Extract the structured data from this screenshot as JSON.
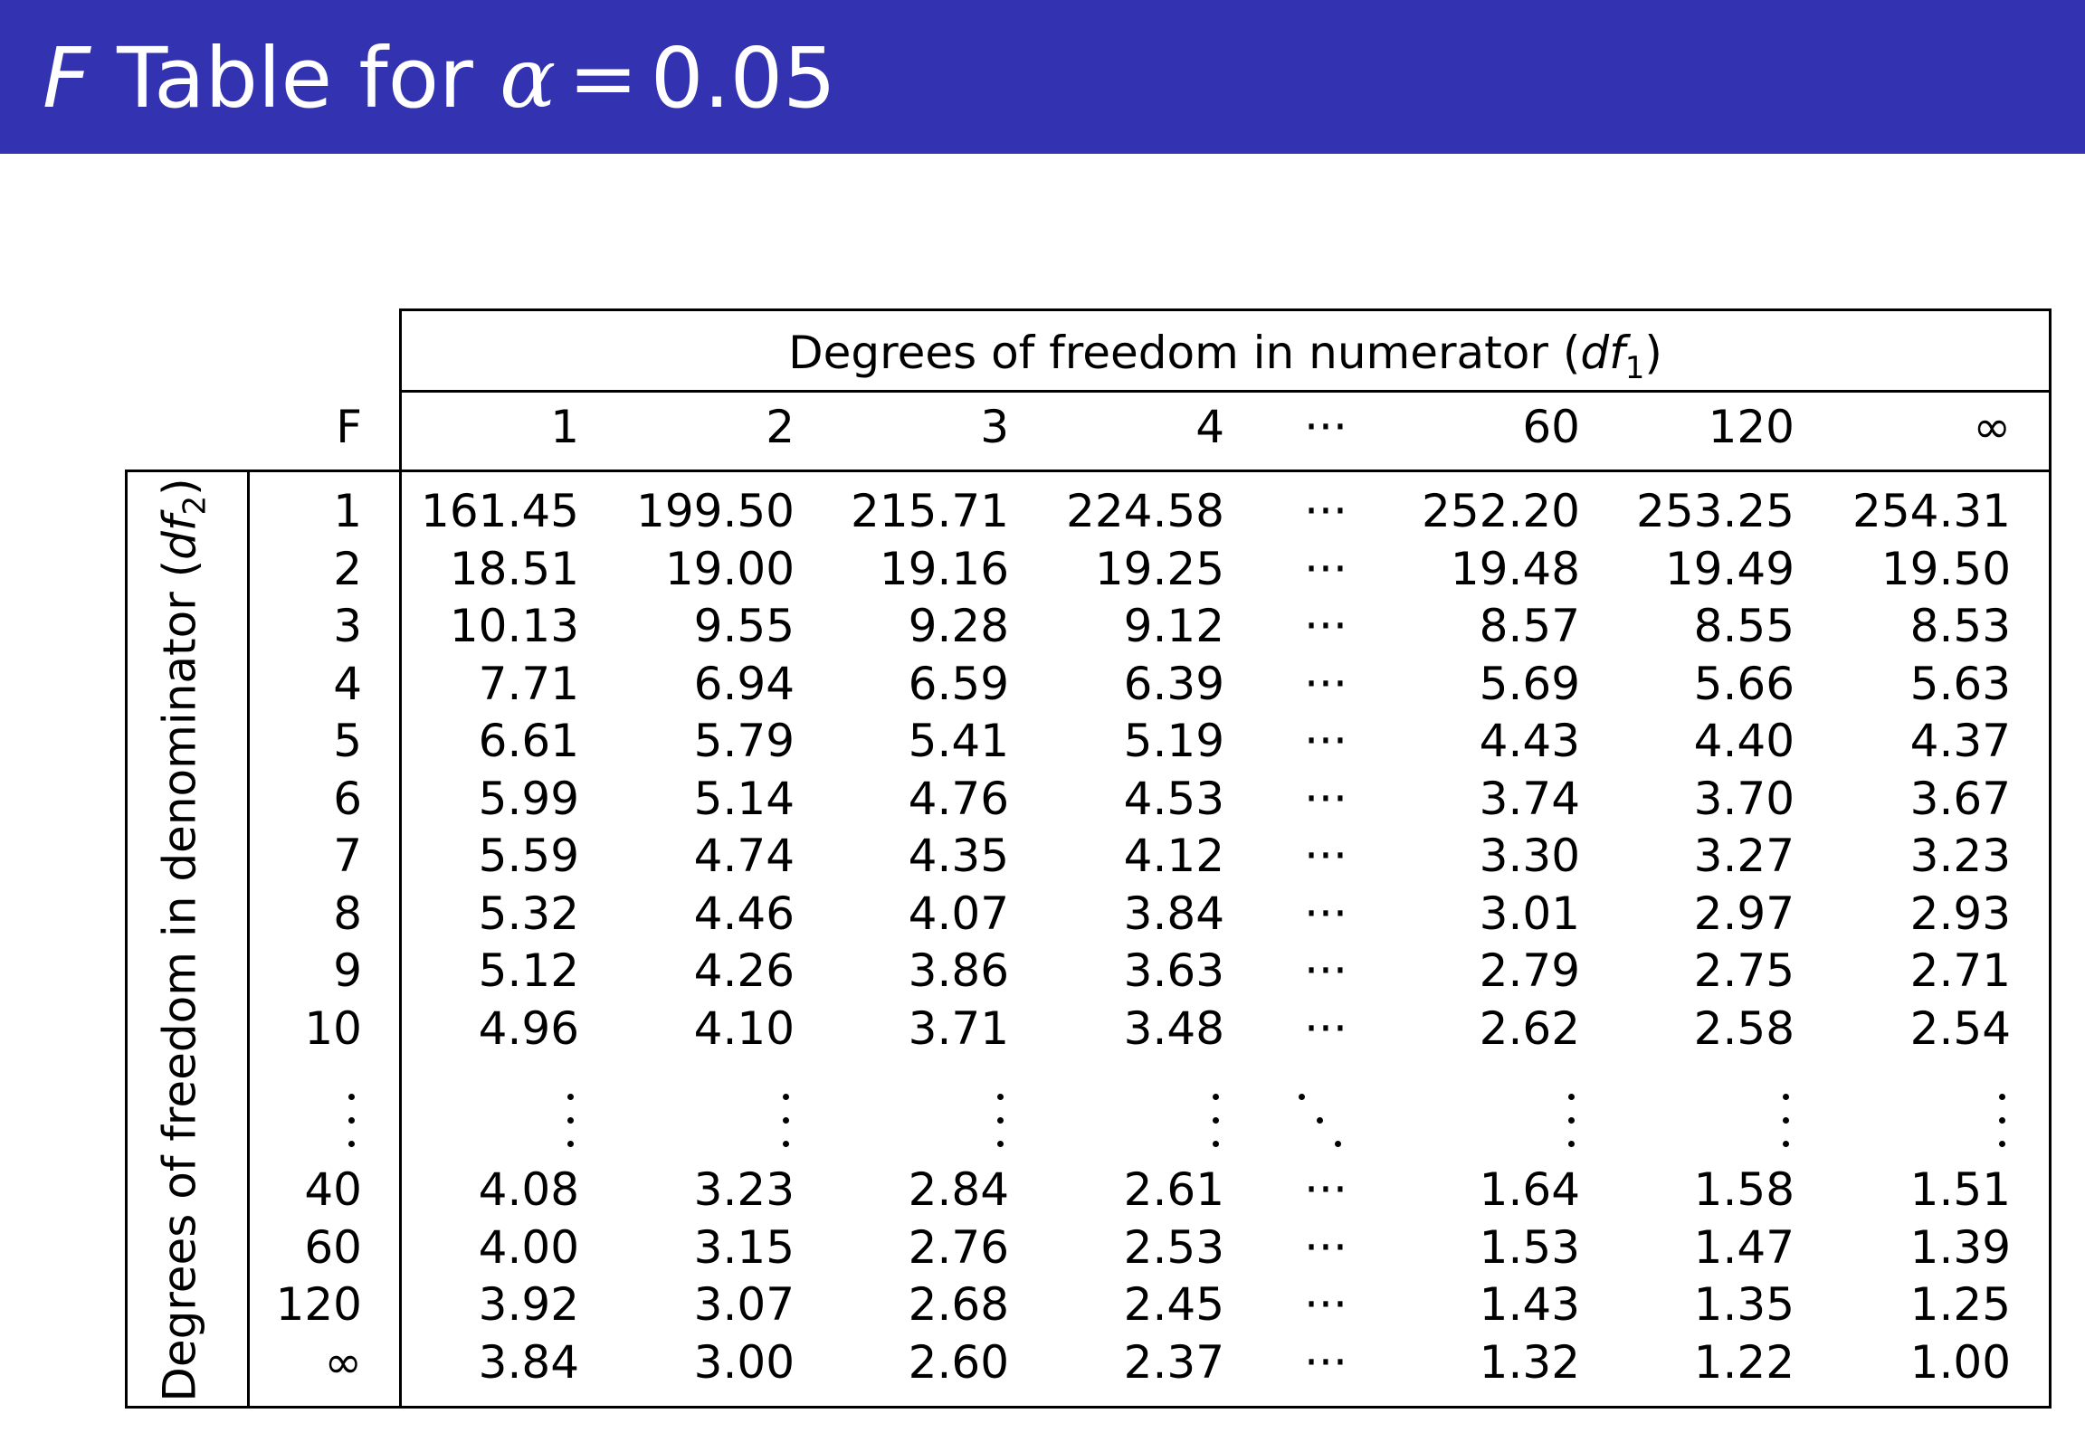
{
  "page": {
    "title_prefix": "F",
    "title_middle": "Table for",
    "title_alpha": "α",
    "title_equals": "=",
    "title_value": "0.05"
  },
  "table": {
    "corner_label": "F",
    "numerator_header": "Degrees of freedom in numerator (",
    "numerator_var": "df",
    "numerator_sub": "1",
    "numerator_close": ")",
    "denominator_header": "Degrees of freedom in denominator (",
    "denominator_var": "df",
    "denominator_sub": "2",
    "denominator_close": ")",
    "columns": [
      "1",
      "2",
      "3",
      "4",
      "···",
      "60",
      "120",
      "∞"
    ],
    "rows_top": [
      {
        "df2": "1",
        "values": [
          "161.45",
          "199.50",
          "215.71",
          "224.58",
          "···",
          "252.20",
          "253.25",
          "254.31"
        ]
      },
      {
        "df2": "2",
        "values": [
          "18.51",
          "19.00",
          "19.16",
          "19.25",
          "···",
          "19.48",
          "19.49",
          "19.50"
        ]
      },
      {
        "df2": "3",
        "values": [
          "10.13",
          "9.55",
          "9.28",
          "9.12",
          "···",
          "8.57",
          "8.55",
          "8.53"
        ]
      },
      {
        "df2": "4",
        "values": [
          "7.71",
          "6.94",
          "6.59",
          "6.39",
          "···",
          "5.69",
          "5.66",
          "5.63"
        ]
      },
      {
        "df2": "5",
        "values": [
          "6.61",
          "5.79",
          "5.41",
          "5.19",
          "···",
          "4.43",
          "4.40",
          "4.37"
        ]
      },
      {
        "df2": "6",
        "values": [
          "5.99",
          "5.14",
          "4.76",
          "4.53",
          "···",
          "3.74",
          "3.70",
          "3.67"
        ]
      },
      {
        "df2": "7",
        "values": [
          "5.59",
          "4.74",
          "4.35",
          "4.12",
          "···",
          "3.30",
          "3.27",
          "3.23"
        ]
      },
      {
        "df2": "8",
        "values": [
          "5.32",
          "4.46",
          "4.07",
          "3.84",
          "···",
          "3.01",
          "2.97",
          "2.93"
        ]
      },
      {
        "df2": "9",
        "values": [
          "5.12",
          "4.26",
          "3.86",
          "3.63",
          "···",
          "2.79",
          "2.75",
          "2.71"
        ]
      },
      {
        "df2": "10",
        "values": [
          "4.96",
          "4.10",
          "3.71",
          "3.48",
          "···",
          "2.62",
          "2.58",
          "2.54"
        ]
      }
    ],
    "rows_bottom": [
      {
        "df2": "40",
        "values": [
          "4.08",
          "3.23",
          "2.84",
          "2.61",
          "···",
          "1.64",
          "1.58",
          "1.51"
        ]
      },
      {
        "df2": "60",
        "values": [
          "4.00",
          "3.15",
          "2.76",
          "2.53",
          "···",
          "1.53",
          "1.47",
          "1.39"
        ]
      },
      {
        "df2": "120",
        "values": [
          "3.92",
          "3.07",
          "2.68",
          "2.45",
          "···",
          "1.43",
          "1.35",
          "1.25"
        ]
      },
      {
        "df2": "∞",
        "values": [
          "3.84",
          "3.00",
          "2.60",
          "2.37",
          "···",
          "1.32",
          "1.22",
          "1.00"
        ]
      }
    ]
  }
}
